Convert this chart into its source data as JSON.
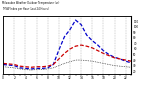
{
  "title": "Milwaukee Weather Outdoor Temperature (vs) THSW Index per Hour (Last 24 Hours)",
  "hours": [
    0,
    1,
    2,
    3,
    4,
    5,
    6,
    7,
    8,
    9,
    10,
    11,
    12,
    13,
    14,
    15,
    16,
    17,
    18,
    19,
    20,
    21,
    22,
    23
  ],
  "temp": [
    34,
    33,
    32,
    29,
    28,
    27,
    28,
    28,
    29,
    32,
    42,
    52,
    60,
    65,
    67,
    65,
    62,
    57,
    52,
    48,
    44,
    42,
    40,
    38
  ],
  "thsw": [
    32,
    31,
    30,
    26,
    25,
    24,
    25,
    25,
    26,
    32,
    58,
    82,
    95,
    112,
    104,
    85,
    75,
    67,
    57,
    50,
    45,
    42,
    38,
    35
  ],
  "dew": [
    28,
    27,
    26,
    24,
    23,
    22,
    23,
    23,
    24,
    26,
    30,
    34,
    37,
    40,
    40,
    39,
    38,
    36,
    34,
    32,
    30,
    29,
    28,
    27
  ],
  "temp_color": "#cc0000",
  "thsw_color": "#0000cc",
  "dew_color": "#000000",
  "bg_color": "#ffffff",
  "grid_color": "#888888",
  "ylim": [
    15,
    120
  ],
  "yticks_right": [
    20,
    30,
    40,
    50,
    60,
    70,
    80,
    90,
    100,
    110
  ],
  "figsize": [
    1.6,
    0.87
  ],
  "dpi": 100
}
